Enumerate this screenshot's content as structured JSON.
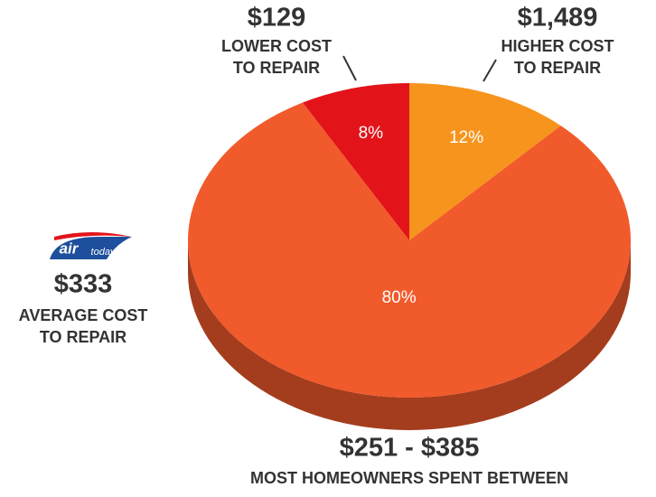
{
  "chart_data": {
    "type": "pie",
    "values": [
      12,
      80,
      8
    ],
    "value_labels": [
      "12%",
      "80%",
      "8%"
    ],
    "colors": [
      "#f7941d",
      "#f15a2b",
      "#e2141a"
    ],
    "annotations": [
      {
        "amount": "$129",
        "lines": [
          "LOWER COST",
          "TO REPAIR"
        ]
      },
      {
        "amount": "$1,489",
        "lines": [
          "HIGHER COST",
          "TO REPAIR"
        ]
      },
      {
        "amount": "$333",
        "lines": [
          "AVERAGE COST",
          "TO REPAIR"
        ]
      },
      {
        "amount": "$251 - $385",
        "lines": [
          "MOST HOMEOWNERS SPENT BETWEEN"
        ]
      }
    ],
    "logo": [
      "air",
      "today"
    ]
  }
}
